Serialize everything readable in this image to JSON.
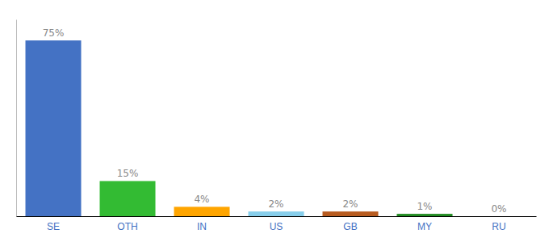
{
  "chart_data": {
    "type": "bar",
    "categories": [
      "SE",
      "OTH",
      "IN",
      "US",
      "GB",
      "MY",
      "RU"
    ],
    "values": [
      75,
      15,
      4,
      2,
      2,
      1,
      0
    ],
    "value_labels": [
      "75%",
      "15%",
      "4%",
      "2%",
      "2%",
      "1%",
      "0%"
    ],
    "colors": [
      "#4472C4",
      "#33BB33",
      "#FFA500",
      "#87CEEB",
      "#B85C20",
      "#228B22",
      "#CCCCCC"
    ],
    "ylim": [
      0,
      84
    ],
    "data_labels": true,
    "tick_labels": "x",
    "grid": false
  }
}
